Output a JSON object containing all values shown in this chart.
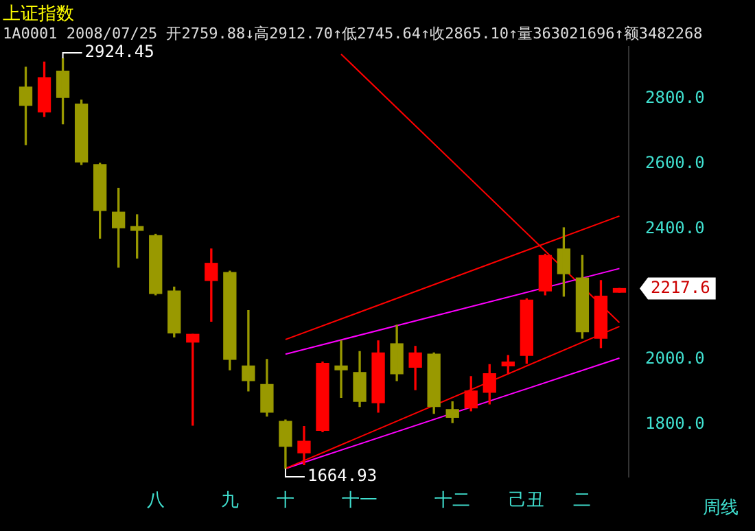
{
  "chart_data": {
    "type": "candlestick",
    "title": "上证指数",
    "subtitle": "1A0001 2008/07/25 开2759.88↓高2912.70↑低2745.64↑收2865.10↑量363021696↑额3482268",
    "xlabel": "周线",
    "categories": [
      null,
      null,
      null,
      null,
      null,
      null,
      null,
      "八",
      null,
      null,
      null,
      "九",
      null,
      null,
      "十",
      null,
      null,
      null,
      "十一",
      null,
      null,
      null,
      null,
      "十二",
      null,
      null,
      null,
      "己丑",
      null,
      null,
      "二",
      null,
      null
    ],
    "ohlc": [
      [
        2836,
        2897,
        2659,
        2780
      ],
      [
        2759.88,
        2912.7,
        2745.64,
        2865.1
      ],
      [
        2885,
        2924.45,
        2723,
        2804
      ],
      [
        2784,
        2796,
        2598,
        2606
      ],
      [
        2598,
        2602,
        2372,
        2457
      ],
      [
        2452,
        2525,
        2283,
        2404
      ],
      [
        2408,
        2444,
        2311,
        2396
      ],
      [
        2380,
        2384,
        2198,
        2202
      ],
      [
        2210,
        2222,
        2069,
        2081
      ],
      [
        2053,
        2077,
        1798,
        2077
      ],
      [
        2242,
        2339,
        2117,
        2295
      ],
      [
        2267,
        2271,
        1968,
        2000
      ],
      [
        1980,
        2150,
        1903,
        1935
      ],
      [
        1923,
        2000,
        1826,
        1838
      ],
      [
        1810,
        1814,
        1664.93,
        1733
      ],
      [
        1713,
        1794,
        1677,
        1749
      ],
      [
        1782,
        1992,
        1778,
        1988
      ],
      [
        1980,
        2057,
        1883,
        1968
      ],
      [
        1960,
        2024,
        1855,
        1871
      ],
      [
        1867,
        2057,
        1838,
        2020
      ],
      [
        2048,
        2105,
        1935,
        1956
      ],
      [
        1976,
        2040,
        1907,
        2020
      ],
      [
        2016,
        2020,
        1834,
        1855
      ],
      [
        1846,
        1870,
        1806,
        1822
      ],
      [
        1851,
        1947,
        1842,
        1903
      ],
      [
        1899,
        1984,
        1863,
        1956
      ],
      [
        1980,
        2012,
        1956,
        1992
      ],
      [
        2012,
        2186,
        1988,
        2182
      ],
      [
        2210,
        2323,
        2198,
        2319
      ],
      [
        2339,
        2404,
        2194,
        2263
      ],
      [
        2250,
        2319,
        2065,
        2085
      ],
      [
        2065,
        2242,
        2036,
        2194
      ],
      [
        2206,
        2218,
        2206,
        2217.6
      ]
    ],
    "colors": [
      "#999900",
      "#ff0000",
      "#999900",
      "#999900",
      "#999900",
      "#999900",
      "#999900",
      "#999900",
      "#999900",
      "#ff0000",
      "#ff0000",
      "#999900",
      "#999900",
      "#999900",
      "#999900",
      "#ff0000",
      "#ff0000",
      "#999900",
      "#999900",
      "#ff0000",
      "#999900",
      "#ff0000",
      "#999900",
      "#999900",
      "#ff0000",
      "#ff0000",
      "#ff0000",
      "#ff0000",
      "#ff0000",
      "#999900",
      "#999900",
      "#ff0000",
      "#ff0000"
    ],
    "series": [
      {
        "type": "line",
        "color": "#ff0000",
        "values": [
          null,
          null,
          null,
          null,
          null,
          null,
          null,
          null,
          null,
          null,
          null,
          null,
          null,
          null,
          2061,
          null,
          null,
          null,
          null,
          null,
          null,
          null,
          null,
          null,
          null,
          null,
          null,
          null,
          null,
          null,
          null,
          null,
          2440
        ]
      },
      {
        "type": "line",
        "color": "#ff00ff",
        "values": [
          null,
          null,
          null,
          null,
          null,
          null,
          null,
          null,
          null,
          null,
          null,
          null,
          null,
          null,
          2016,
          null,
          null,
          null,
          null,
          null,
          null,
          null,
          null,
          null,
          null,
          null,
          null,
          null,
          null,
          null,
          null,
          null,
          2279
        ]
      },
      {
        "type": "line",
        "color": "#ff0000",
        "values": [
          null,
          null,
          null,
          null,
          null,
          null,
          null,
          null,
          null,
          null,
          null,
          null,
          null,
          null,
          1665,
          null,
          null,
          null,
          null,
          null,
          null,
          null,
          null,
          null,
          null,
          null,
          null,
          null,
          null,
          null,
          null,
          null,
          2101
        ]
      },
      {
        "type": "line",
        "color": "#ff00ff",
        "values": [
          null,
          null,
          null,
          null,
          null,
          null,
          null,
          null,
          null,
          null,
          null,
          null,
          null,
          null,
          1665,
          null,
          null,
          null,
          null,
          null,
          null,
          null,
          null,
          null,
          null,
          null,
          null,
          null,
          null,
          null,
          null,
          null,
          2004
        ]
      },
      {
        "type": "line",
        "color": "#ff0000",
        "values": [
          null,
          null,
          null,
          null,
          null,
          null,
          null,
          null,
          null,
          null,
          null,
          null,
          null,
          null,
          null,
          null,
          null,
          2937,
          null,
          null,
          null,
          null,
          null,
          null,
          null,
          null,
          null,
          null,
          null,
          null,
          null,
          null,
          2113
        ]
      }
    ],
    "annotations": [
      "2924.45",
      "1664.93",
      "2217.6"
    ],
    "ylim": [
      1640,
      2960
    ],
    "yticks": [
      {
        "value": 1800,
        "label": "1800.0"
      },
      {
        "value": 2000,
        "label": "2000.0"
      },
      {
        "value": 2400,
        "label": "2400.0"
      },
      {
        "value": 2600,
        "label": "2600.0"
      },
      {
        "value": 2800,
        "label": "2800.0"
      }
    ],
    "marker": "none"
  }
}
